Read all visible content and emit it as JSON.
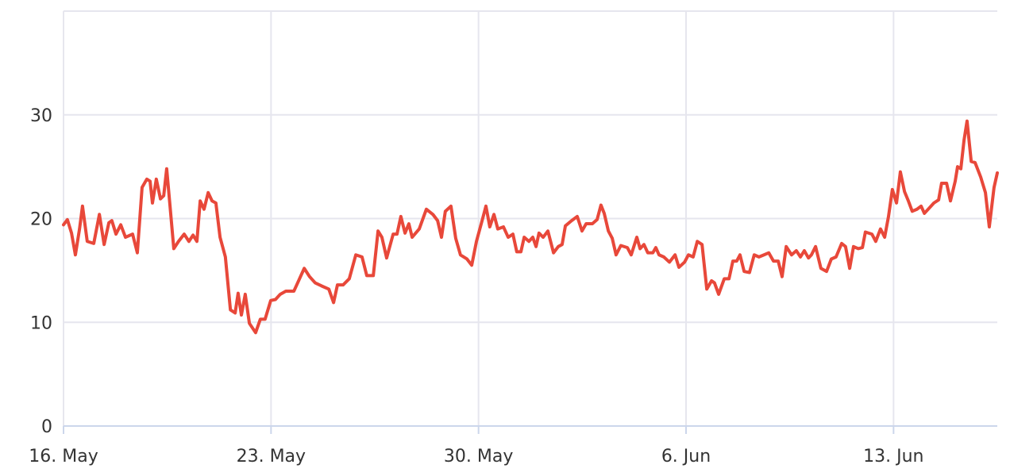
{
  "chart_data": {
    "type": "line",
    "x": [
      0,
      0.13,
      0.27,
      0.4,
      0.54,
      0.64,
      0.8,
      1.02,
      1.21,
      1.37,
      1.53,
      1.63,
      1.77,
      1.93,
      2.09,
      2.33,
      2.49,
      2.65,
      2.81,
      2.92,
      3.0,
      3.13,
      3.27,
      3.38,
      3.48,
      3.59,
      3.72,
      3.88,
      4.07,
      4.23,
      4.37,
      4.5,
      4.61,
      4.74,
      4.88,
      5.01,
      5.14,
      5.28,
      5.46,
      5.63,
      5.79,
      5.89,
      6.0,
      6.13,
      6.27,
      6.48,
      6.64,
      6.8,
      6.99,
      7.15,
      7.31,
      7.5,
      7.77,
      7.93,
      8.12,
      8.3,
      8.49,
      8.71,
      8.95,
      9.11,
      9.24,
      9.43,
      9.64,
      9.86,
      10.07,
      10.23,
      10.45,
      10.61,
      10.74,
      10.9,
      11.12,
      11.25,
      11.38,
      11.52,
      11.65,
      11.76,
      12.0,
      12.24,
      12.46,
      12.62,
      12.75,
      12.88,
      13.07,
      13.23,
      13.39,
      13.61,
      13.77,
      13.93,
      14.12,
      14.25,
      14.38,
      14.52,
      14.65,
      14.84,
      15.0,
      15.16,
      15.29,
      15.43,
      15.54,
      15.7,
      15.83,
      15.94,
      16.04,
      16.18,
      16.34,
      16.53,
      16.69,
      16.82,
      16.93,
      17.14,
      17.33,
      17.49,
      17.63,
      17.84,
      18.0,
      18.13,
      18.24,
      18.38,
      18.51,
      18.64,
      18.8,
      19.02,
      19.15,
      19.34,
      19.45,
      19.58,
      19.71,
      19.88,
      19.98,
      20.09,
      20.25,
      20.44,
      20.63,
      20.76,
      20.95,
      21.08,
      21.24,
      21.38,
      21.54,
      21.7,
      21.86,
      21.96,
      22.1,
      22.29,
      22.45,
      22.58,
      22.71,
      22.82,
      22.96,
      23.14,
      23.3,
      23.46,
      23.63,
      23.79,
      23.95,
      24.11,
      24.24,
      24.38,
      24.56,
      24.72,
      24.86,
      24.99,
      25.13,
      25.23,
      25.37,
      25.55,
      25.74,
      25.9,
      26.06,
      26.25,
      26.38,
      26.52,
      26.65,
      26.81,
      26.95,
      27.05,
      27.27,
      27.4,
      27.56,
      27.7,
      27.83,
      27.96,
      28.1,
      28.23,
      28.37,
      28.5,
      28.63,
      28.79,
      28.93,
      29.04,
      29.2,
      29.36,
      29.52,
      29.62,
      29.79,
      29.92,
      30.08,
      30.16,
      30.27,
      30.38,
      30.48,
      30.62,
      30.75,
      30.94,
      31.1,
      31.23,
      31.39,
      31.5
    ],
    "series": [
      {
        "color": "#e8483a",
        "values": [
          19.4,
          19.9,
          18.6,
          16.5,
          19.0,
          21.2,
          17.8,
          17.6,
          20.4,
          17.5,
          19.6,
          19.8,
          18.5,
          19.4,
          18.2,
          18.5,
          16.7,
          23.0,
          23.8,
          23.6,
          21.5,
          23.8,
          21.9,
          22.2,
          24.8,
          21.3,
          17.1,
          17.8,
          18.5,
          17.8,
          18.4,
          17.8,
          21.7,
          20.9,
          22.5,
          21.7,
          21.5,
          18.2,
          16.3,
          11.2,
          10.9,
          12.8,
          10.7,
          12.7,
          9.9,
          9.0,
          10.3,
          10.3,
          12.1,
          12.2,
          12.7,
          13.0,
          13.0,
          14.0,
          15.2,
          14.4,
          13.8,
          13.5,
          13.2,
          11.9,
          13.6,
          13.6,
          14.2,
          16.5,
          16.3,
          14.5,
          14.5,
          18.8,
          18.2,
          16.2,
          18.5,
          18.5,
          20.2,
          18.6,
          19.5,
          18.2,
          19.0,
          20.9,
          20.4,
          19.8,
          18.2,
          20.7,
          21.2,
          18.1,
          16.5,
          16.1,
          15.5,
          17.8,
          19.8,
          21.2,
          19.2,
          20.4,
          19.0,
          19.2,
          18.2,
          18.5,
          16.8,
          16.8,
          18.2,
          17.8,
          18.2,
          17.3,
          18.6,
          18.2,
          18.8,
          16.7,
          17.3,
          17.5,
          19.3,
          19.8,
          20.2,
          18.8,
          19.5,
          19.5,
          19.9,
          21.3,
          20.5,
          18.8,
          18.1,
          16.5,
          17.4,
          17.2,
          16.5,
          18.2,
          17.1,
          17.5,
          16.7,
          16.7,
          17.2,
          16.5,
          16.3,
          15.8,
          16.5,
          15.3,
          15.8,
          16.5,
          16.3,
          17.8,
          17.5,
          13.2,
          14.0,
          13.8,
          12.7,
          14.2,
          14.2,
          15.9,
          15.9,
          16.5,
          14.9,
          14.8,
          16.5,
          16.3,
          16.5,
          16.7,
          15.9,
          15.9,
          14.4,
          17.3,
          16.5,
          16.9,
          16.3,
          16.9,
          16.2,
          16.5,
          17.3,
          15.2,
          14.9,
          16.1,
          16.3,
          17.6,
          17.3,
          15.2,
          17.3,
          17.1,
          17.2,
          18.7,
          18.5,
          17.8,
          19.0,
          18.2,
          20.2,
          22.8,
          21.5,
          24.5,
          22.6,
          21.7,
          20.7,
          20.9,
          21.2,
          20.5,
          21.0,
          21.5,
          21.8,
          23.4,
          23.4,
          21.7,
          23.6,
          25.0,
          24.8,
          27.6,
          29.4,
          25.5,
          25.4,
          24.0,
          22.5,
          19.2,
          23.0,
          24.4
        ]
      }
    ],
    "xlim": [
      0,
      31.5
    ],
    "xticks": [
      {
        "value": 0,
        "label": "16. May"
      },
      {
        "value": 7,
        "label": "23. May"
      },
      {
        "value": 14,
        "label": "30. May"
      },
      {
        "value": 21,
        "label": "6. Jun"
      },
      {
        "value": 28,
        "label": "13. Jun"
      }
    ],
    "ylim": [
      0,
      40
    ],
    "yticks": [
      0,
      10,
      20,
      30
    ],
    "grid": true
  }
}
